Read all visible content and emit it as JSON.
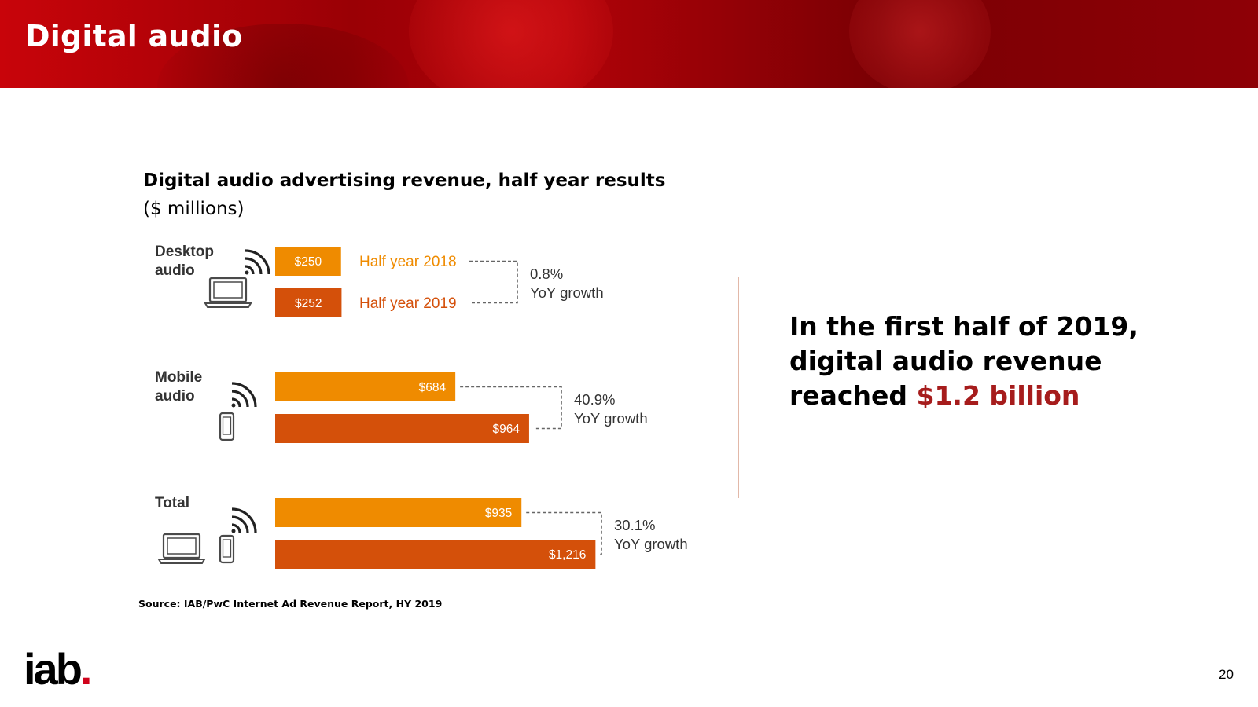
{
  "slide": {
    "title": "Digital audio",
    "headline_part1": "In the first half of 2019, digital audio revenue reached ",
    "headline_accent": "$1.2 billion",
    "source": "Source: IAB/PwC Internet Ad Revenue Report, HY 2019",
    "logo_text": "iab",
    "logo_dot": ".",
    "page_number": "20"
  },
  "colors": {
    "bar_2018": "#ef8b00",
    "bar_2019": "#d4500a",
    "accent": "#a61c1c",
    "icon": "#4a4a4a"
  },
  "chart_data": {
    "type": "bar",
    "orientation": "horizontal",
    "title": "Digital audio advertising revenue, half year results",
    "subtitle": "($ millions)",
    "series": [
      {
        "name": "Half year 2018",
        "values": [
          250,
          684,
          935
        ],
        "labels": [
          "$250",
          "$684",
          "$935"
        ]
      },
      {
        "name": "Half year 2019",
        "values": [
          252,
          964,
          1216
        ],
        "labels": [
          "$252",
          "$964",
          "$1,216"
        ]
      }
    ],
    "groups": [
      {
        "label_line1": "Desktop",
        "label_line2": "audio",
        "growth_pct": "0.8%",
        "growth_text": "YoY growth",
        "devices": [
          "laptop"
        ]
      },
      {
        "label_line1": "Mobile",
        "label_line2": "audio",
        "growth_pct": "40.9%",
        "growth_text": "YoY growth",
        "devices": [
          "phone"
        ]
      },
      {
        "label_line1": "Total",
        "label_line2": "",
        "growth_pct": "30.1%",
        "growth_text": "YoY growth",
        "devices": [
          "laptop",
          "phone"
        ]
      }
    ]
  }
}
